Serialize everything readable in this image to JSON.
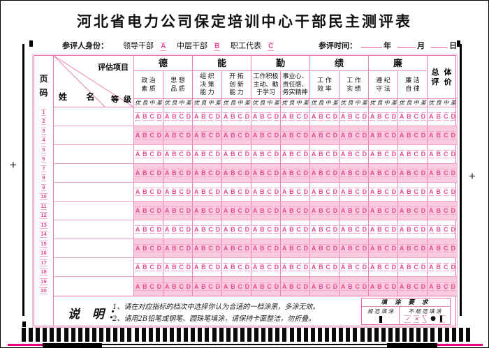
{
  "title": "河北省电力公司保定培训中心干部民主测评表",
  "identity": {
    "label": "参评人身份：",
    "options": [
      {
        "label": "领导干部",
        "bubble": "A"
      },
      {
        "label": "中层干部",
        "bubble": "B"
      },
      {
        "label": "职工代表",
        "bubble": "C"
      }
    ],
    "time_label": "参评时间：",
    "time_units": [
      "年",
      "月",
      "日"
    ]
  },
  "table": {
    "page_col_chars": [
      "页",
      "码"
    ],
    "corner": {
      "project_label": "评估项目",
      "name_label": "姓  名",
      "grade_label": "等 级"
    },
    "categories": [
      "德",
      "能",
      "勤",
      "绩",
      "廉"
    ],
    "overall_lines": [
      "总 体",
      "评 价"
    ],
    "sub_items": [
      {
        "lines": [
          "政 治",
          "素 质"
        ]
      },
      {
        "lines": [
          "思 想",
          "品 质"
        ]
      },
      {
        "lines": [
          "组 织",
          "决 策",
          "能 力"
        ]
      },
      {
        "lines": [
          "开 拓",
          "创 新",
          "能 力"
        ]
      },
      {
        "lines": [
          "工作积极",
          "主动、勤",
          "于学习"
        ]
      },
      {
        "lines": [
          "事业心、",
          "责任感、",
          "务实精神"
        ]
      },
      {
        "lines": [
          "工 作",
          "效 率"
        ]
      },
      {
        "lines": [
          "工 作",
          "实 绩"
        ]
      },
      {
        "lines": [
          "遵 纪",
          "守 法"
        ]
      },
      {
        "lines": [
          "廉 洁",
          "自 律"
        ]
      }
    ],
    "grade_labels": [
      "优",
      "良",
      "中",
      "差"
    ],
    "bubble_letters": [
      "A",
      "B",
      "C",
      "D"
    ],
    "bubble_columns": 11,
    "data_rows": 10,
    "page_codes": [
      "1",
      "2",
      "3",
      "4",
      "5",
      "6",
      "7",
      "8",
      "9",
      "10",
      "11",
      "12",
      "13",
      "14",
      "15",
      "16",
      "17",
      "18",
      "19",
      "20"
    ]
  },
  "notes": {
    "heading": "说 明：",
    "lines": [
      "1、请在对应指标的档次中选择你认为合适的一档涂黑，多涂无效。",
      "2、请用2B铅笔或钢笔、圆珠笔填涂，请保持卡面整洁，勿折叠。"
    ]
  },
  "fill_req": {
    "title": "填 涂 要 求",
    "standard_label": "规 范 填 涂",
    "nonstandard_label": "不 规 范 填 涂",
    "bad_marks": [
      {
        "glyph": "✓",
        "style": "mark"
      },
      {
        "glyph": "✕",
        "style": "mark"
      },
      {
        "glyph": "╲",
        "style": "mark"
      },
      {
        "glyph": "●",
        "style": "dot"
      },
      {
        "glyph": "▌",
        "style": "bar"
      }
    ]
  },
  "decor": {
    "timing_marks": 64
  },
  "colors": {
    "bubble_pink": "#e24b94",
    "grid_pink": "#ee85b5",
    "alt_row_pink": "#f9cbdd",
    "magenta_edge": "#e6007e",
    "black": "#000000"
  }
}
